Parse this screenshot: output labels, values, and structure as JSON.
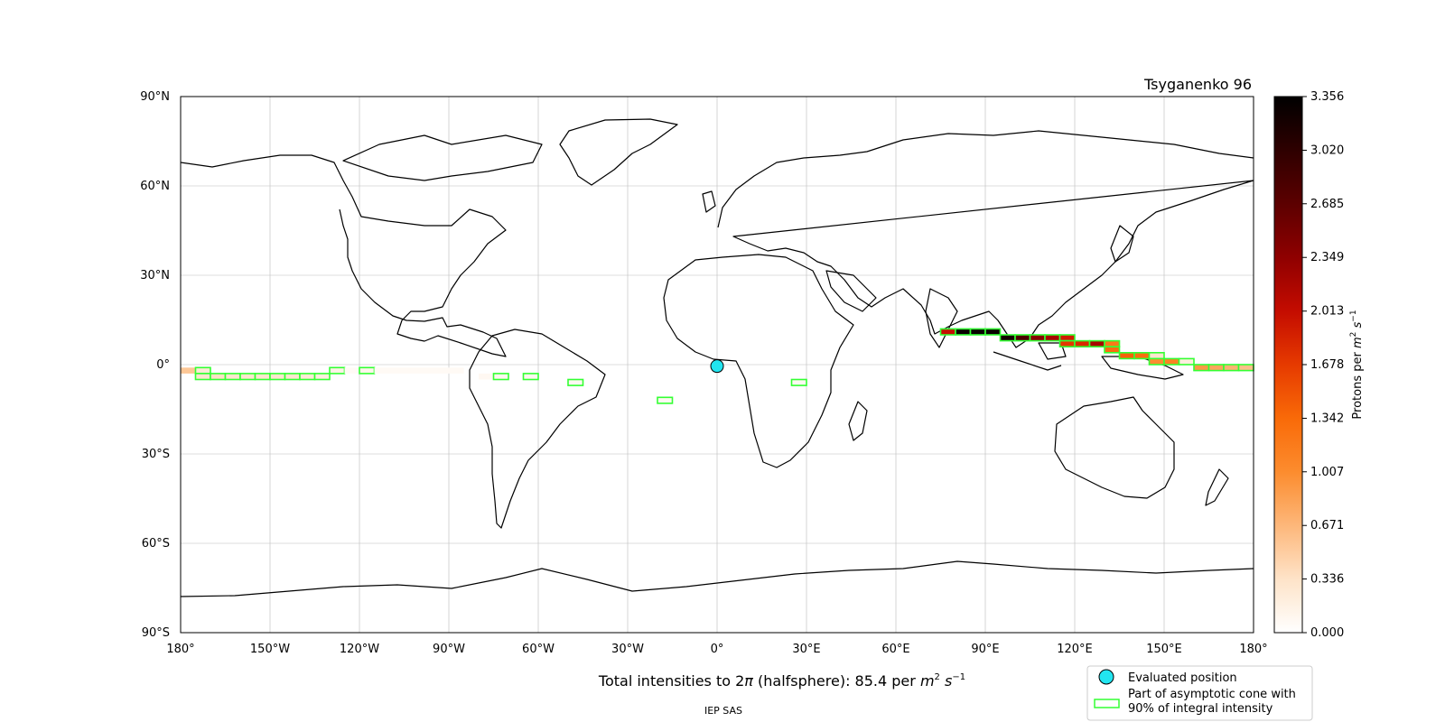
{
  "chart_data": {
    "type": "heatmap",
    "projection": "equirectangular",
    "title": "Tsyganenko 96",
    "subtitle_prefix": "Total intensities to 2",
    "subtitle_pi": "π",
    "subtitle_mid": " (halfsphere): 85.4 per ",
    "subtitle_m": "m",
    "subtitle_exp2": "2",
    "subtitle_s": "s",
    "subtitle_expm1": "−1",
    "credit": "IEP SAS",
    "xlim": [
      -180,
      180
    ],
    "ylim": [
      -90,
      90
    ],
    "grid": true,
    "x_ticks": [
      {
        "value": -180,
        "label": "180°"
      },
      {
        "value": -150,
        "label": "150°W"
      },
      {
        "value": -120,
        "label": "120°W"
      },
      {
        "value": -90,
        "label": "90°W"
      },
      {
        "value": -60,
        "label": "60°W"
      },
      {
        "value": -30,
        "label": "30°W"
      },
      {
        "value": 0,
        "label": "0°"
      },
      {
        "value": 30,
        "label": "30°E"
      },
      {
        "value": 60,
        "label": "60°E"
      },
      {
        "value": 90,
        "label": "90°E"
      },
      {
        "value": 120,
        "label": "120°E"
      },
      {
        "value": 150,
        "label": "150°E"
      },
      {
        "value": 180,
        "label": "180°"
      }
    ],
    "y_ticks": [
      {
        "value": 90,
        "label": "90°N"
      },
      {
        "value": 60,
        "label": "60°N"
      },
      {
        "value": 30,
        "label": "30°N"
      },
      {
        "value": 0,
        "label": "0°"
      },
      {
        "value": -30,
        "label": "30°S"
      },
      {
        "value": -60,
        "label": "60°S"
      },
      {
        "value": -90,
        "label": "90°S"
      }
    ],
    "colorbar": {
      "label_prefix": "Protons per ",
      "label_m": "m",
      "label_exp2": "2",
      "label_s": "s",
      "label_expm1": "−1",
      "min": 0.0,
      "max": 3.356,
      "ticks": [
        "0.000",
        "0.336",
        "0.671",
        "1.007",
        "1.342",
        "1.678",
        "2.013",
        "2.349",
        "2.685",
        "3.020",
        "3.356"
      ],
      "colors": [
        "#ffffff",
        "#fee3c8",
        "#fdb77a",
        "#fc8c2e",
        "#f96a08",
        "#e63a00",
        "#c40c00",
        "#8f0000",
        "#5c0000",
        "#2e0000",
        "#000000"
      ]
    },
    "evaluated_position": {
      "lon": 0,
      "lat": -0.5,
      "color": "#22e5f0"
    },
    "cone_color": "#33ff33",
    "cells": [
      {
        "lon": -180,
        "lat": -2,
        "value": 0.55,
        "cone": false
      },
      {
        "lon": -175,
        "lat": -2,
        "value": 0.25,
        "cone": true
      },
      {
        "lon": -175,
        "lat": -4,
        "value": 0.3,
        "cone": true
      },
      {
        "lon": -170,
        "lat": -4,
        "value": 0.35,
        "cone": true
      },
      {
        "lon": -165,
        "lat": -4,
        "value": 0.3,
        "cone": true
      },
      {
        "lon": -160,
        "lat": -4,
        "value": 0.3,
        "cone": true
      },
      {
        "lon": -155,
        "lat": -4,
        "value": 0.3,
        "cone": true
      },
      {
        "lon": -150,
        "lat": -4,
        "value": 0.3,
        "cone": true
      },
      {
        "lon": -145,
        "lat": -4,
        "value": 0.3,
        "cone": true
      },
      {
        "lon": -140,
        "lat": -4,
        "value": 0.25,
        "cone": true
      },
      {
        "lon": -135,
        "lat": -4,
        "value": 0.2,
        "cone": true
      },
      {
        "lon": -130,
        "lat": -2,
        "value": 0.15,
        "cone": true
      },
      {
        "lon": -125,
        "lat": -2,
        "value": 0.06,
        "cone": false
      },
      {
        "lon": -120,
        "lat": -2,
        "value": 0.12,
        "cone": true
      },
      {
        "lon": -115,
        "lat": -2,
        "value": 0.06,
        "cone": false
      },
      {
        "lon": -110,
        "lat": -2,
        "value": 0.06,
        "cone": false
      },
      {
        "lon": -105,
        "lat": -2,
        "value": 0.06,
        "cone": false
      },
      {
        "lon": -100,
        "lat": -2,
        "value": 0.06,
        "cone": false
      },
      {
        "lon": -95,
        "lat": -2,
        "value": 0.06,
        "cone": false
      },
      {
        "lon": -90,
        "lat": -2,
        "value": 0.06,
        "cone": false
      },
      {
        "lon": -80,
        "lat": -4,
        "value": 0.08,
        "cone": false
      },
      {
        "lon": -75,
        "lat": -4,
        "value": 0.1,
        "cone": true
      },
      {
        "lon": -65,
        "lat": -4,
        "value": 0.1,
        "cone": true
      },
      {
        "lon": -50,
        "lat": -6,
        "value": 0.08,
        "cone": true
      },
      {
        "lon": -20,
        "lat": -12,
        "value": 0.08,
        "cone": true
      },
      {
        "lon": 25,
        "lat": -6,
        "value": 0.08,
        "cone": true
      },
      {
        "lon": 75,
        "lat": 11,
        "value": 2.0,
        "cone": true
      },
      {
        "lon": 80,
        "lat": 11,
        "value": 3.3,
        "cone": true
      },
      {
        "lon": 85,
        "lat": 11,
        "value": 3.3,
        "cone": true
      },
      {
        "lon": 90,
        "lat": 11,
        "value": 3.3,
        "cone": true
      },
      {
        "lon": 95,
        "lat": 9,
        "value": 3.2,
        "cone": true
      },
      {
        "lon": 100,
        "lat": 9,
        "value": 2.8,
        "cone": true
      },
      {
        "lon": 105,
        "lat": 9,
        "value": 2.4,
        "cone": true
      },
      {
        "lon": 110,
        "lat": 9,
        "value": 2.2,
        "cone": true
      },
      {
        "lon": 115,
        "lat": 9,
        "value": 1.9,
        "cone": true
      },
      {
        "lon": 115,
        "lat": 7,
        "value": 1.7,
        "cone": true
      },
      {
        "lon": 120,
        "lat": 7,
        "value": 1.8,
        "cone": true
      },
      {
        "lon": 125,
        "lat": 7,
        "value": 2.2,
        "cone": true
      },
      {
        "lon": 130,
        "lat": 7,
        "value": 1.2,
        "cone": true
      },
      {
        "lon": 130,
        "lat": 5,
        "value": 1.3,
        "cone": true
      },
      {
        "lon": 135,
        "lat": 3,
        "value": 1.4,
        "cone": true
      },
      {
        "lon": 140,
        "lat": 3,
        "value": 1.3,
        "cone": true
      },
      {
        "lon": 145,
        "lat": 3,
        "value": 0.3,
        "cone": true
      },
      {
        "lon": 145,
        "lat": 1,
        "value": 1.0,
        "cone": true
      },
      {
        "lon": 150,
        "lat": 1,
        "value": 1.1,
        "cone": true
      },
      {
        "lon": 155,
        "lat": 1,
        "value": 0.2,
        "cone": true
      },
      {
        "lon": 160,
        "lat": -1,
        "value": 0.9,
        "cone": true
      },
      {
        "lon": 165,
        "lat": -1,
        "value": 0.8,
        "cone": true
      },
      {
        "lon": 170,
        "lat": -1,
        "value": 0.7,
        "cone": true
      },
      {
        "lon": 175,
        "lat": -1,
        "value": 0.6,
        "cone": true
      }
    ],
    "legend": [
      {
        "label": "Evaluated position",
        "marker": "circle"
      },
      {
        "label_line1": "Part of asymptotic cone with",
        "label_line2": "90% of integral intensity",
        "marker": "rect"
      }
    ]
  }
}
